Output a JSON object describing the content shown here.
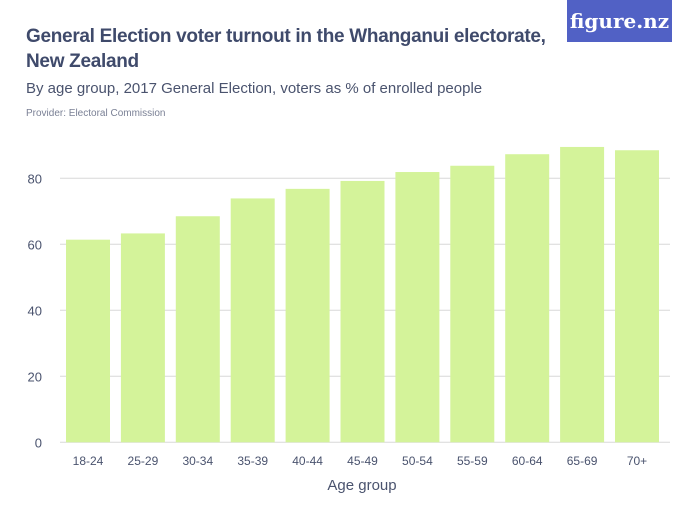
{
  "header": {
    "title": "General Election voter turnout in the Whanganui electorate, New Zealand",
    "subtitle": "By age group, 2017 General Election, voters as % of enrolled people",
    "provider": "Provider: Electoral Commission",
    "logo": "figure.nz"
  },
  "colors": {
    "bar": "#d4f39a",
    "grid": "#d8d8d8",
    "axis_text": "#4a536e",
    "logo_bg": "#5161c5"
  },
  "chart_data": {
    "type": "bar",
    "title": "General Election voter turnout in the Whanganui electorate, New Zealand",
    "subtitle": "By age group, 2017 General Election, voters as % of enrolled people",
    "xlabel": "Age group",
    "ylabel": "",
    "categories": [
      "18-24",
      "25-29",
      "30-34",
      "35-39",
      "40-44",
      "45-49",
      "50-54",
      "55-59",
      "60-64",
      "65-69",
      "70+"
    ],
    "values": [
      61.4,
      63.3,
      68.5,
      73.9,
      76.8,
      79.2,
      81.9,
      83.8,
      87.3,
      89.5,
      88.5
    ],
    "ylim": [
      0,
      90
    ],
    "yticks": [
      "0",
      "20",
      "40",
      "60",
      "80"
    ],
    "grid": true,
    "legend": "none"
  }
}
